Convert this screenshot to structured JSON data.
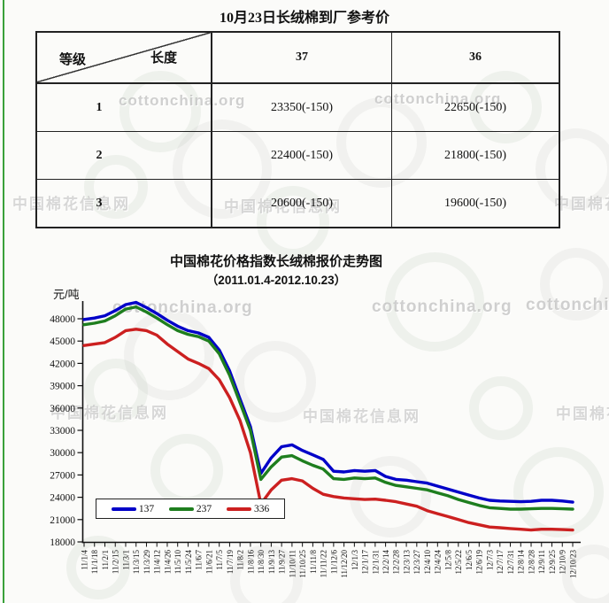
{
  "table": {
    "title": "10月23日长绒棉到厂参考价",
    "corner": {
      "row_label": "等级",
      "col_label": "长度"
    },
    "columns": [
      "37",
      "36"
    ],
    "rows": [
      {
        "grade": "1",
        "values": [
          "23350(-150)",
          "22650(-150)"
        ]
      },
      {
        "grade": "2",
        "values": [
          "22400(-150)",
          "21800(-150)"
        ]
      },
      {
        "grade": "3",
        "values": [
          "20600(-150)",
          "19600(-150)"
        ]
      }
    ]
  },
  "watermarks": {
    "en": "cottonchina.org",
    "cn": "中国棉花信息网"
  },
  "chart_data": {
    "type": "line",
    "title": "中国棉花价格指数长绒棉报价走势图",
    "subtitle": "（2011.01.4-2012.10.23）",
    "ylabel": "元/吨",
    "xlabel": "",
    "ylim": [
      18000,
      48000
    ],
    "ytick_step": 3000,
    "yticks": [
      18000,
      21000,
      24000,
      27000,
      30000,
      33000,
      36000,
      39000,
      42000,
      45000,
      48000
    ],
    "grid": false,
    "legend_position": "inside-bottom-left",
    "categories": [
      "11/1/4",
      "11/1/18",
      "11/2/1",
      "11/2/15",
      "11/3/1",
      "11/3/15",
      "11/3/29",
      "11/4/12",
      "11/4/26",
      "11/5/10",
      "11/5/24",
      "11/6/7",
      "11/6/21",
      "11/7/5",
      "11/7/19",
      "11/8/2",
      "11/8/16",
      "11/8/30",
      "11/9/13",
      "11/9/27",
      "11/10/11",
      "11/10/25",
      "11/11/8",
      "11/11/22",
      "11/12/6",
      "11/12/20",
      "12/1/3",
      "12/1/17",
      "12/1/31",
      "12/2/14",
      "12/2/28",
      "12/3/13",
      "12/3/27",
      "12/4/10",
      "12/4/24",
      "12/5/8",
      "12/5/22",
      "12/6/5",
      "12/6/19",
      "12/7/3",
      "12/7/17",
      "12/7/31",
      "12/8/14",
      "12/8/28",
      "12/9/11",
      "12/9/25",
      "12/10/9",
      "12/10/23"
    ],
    "series": [
      {
        "name": "137",
        "color": "#0000C8",
        "values": [
          47900,
          48100,
          48400,
          49100,
          49900,
          50200,
          49500,
          48700,
          47800,
          47000,
          46400,
          46100,
          45500,
          43800,
          41000,
          37200,
          33500,
          27200,
          29300,
          30800,
          31050,
          30300,
          29700,
          29100,
          27500,
          27400,
          27600,
          27500,
          27600,
          26800,
          26400,
          26300,
          26100,
          25900,
          25500,
          25100,
          24700,
          24300,
          23900,
          23600,
          23500,
          23450,
          23400,
          23450,
          23600,
          23600,
          23500,
          23350
        ]
      },
      {
        "name": "237",
        "color": "#1E7E1E",
        "values": [
          47200,
          47400,
          47700,
          48400,
          49300,
          49600,
          48900,
          48100,
          47200,
          46400,
          45900,
          45600,
          45000,
          43300,
          40400,
          36700,
          33000,
          26400,
          28100,
          29400,
          29600,
          28900,
          28300,
          27800,
          26500,
          26400,
          26600,
          26500,
          26600,
          26000,
          25600,
          25400,
          25200,
          25000,
          24600,
          24200,
          23700,
          23300,
          22900,
          22600,
          22500,
          22400,
          22400,
          22450,
          22500,
          22500,
          22450,
          22400
        ]
      },
      {
        "name": "336",
        "color": "#CC2020",
        "values": [
          44400,
          44600,
          44800,
          45500,
          46400,
          46600,
          46400,
          45800,
          44600,
          43600,
          42600,
          42000,
          41300,
          39800,
          37400,
          34300,
          30000,
          23100,
          25000,
          26300,
          26500,
          26200,
          25200,
          24400,
          24100,
          23900,
          23800,
          23700,
          23750,
          23600,
          23400,
          23100,
          22800,
          22200,
          21800,
          21400,
          21000,
          20600,
          20300,
          20000,
          19900,
          19800,
          19700,
          19600,
          19700,
          19700,
          19650,
          19600
        ]
      }
    ]
  }
}
